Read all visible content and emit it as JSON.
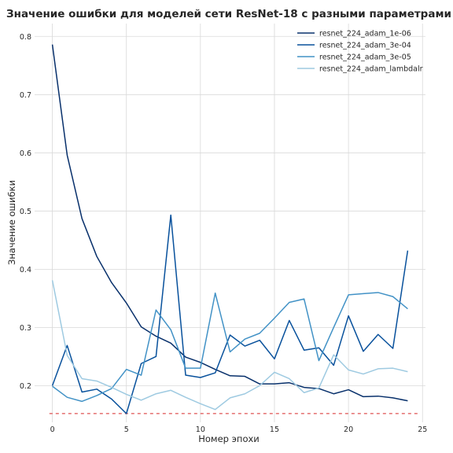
{
  "chart_data": {
    "type": "line",
    "title": "Значение ошибки для моделей сети ResNet-18 с разными параметрами",
    "xlabel": "Номер эпохи",
    "ylabel": "Значение ошибки",
    "xlim": [
      -1.2,
      25.2
    ],
    "ylim": [
      0.137,
      0.822
    ],
    "xticks": [
      0,
      5,
      10,
      15,
      20,
      25
    ],
    "yticks": [
      0.2,
      0.3,
      0.4,
      0.5,
      0.6,
      0.7,
      0.8
    ],
    "grid": true,
    "legend_position": "top-right",
    "x": [
      0,
      1,
      2,
      3,
      4,
      5,
      6,
      7,
      8,
      9,
      10,
      11,
      12,
      13,
      14,
      15,
      16,
      17,
      18,
      19,
      20,
      21,
      22,
      23,
      24
    ],
    "series": [
      {
        "name": "resnet_224_adam_1e-06",
        "color": "#08306b",
        "values": [
          0.786,
          0.596,
          0.487,
          0.422,
          0.377,
          0.342,
          0.301,
          0.285,
          0.273,
          0.249,
          0.24,
          0.228,
          0.217,
          0.216,
          0.203,
          0.203,
          0.205,
          0.197,
          0.195,
          0.186,
          0.193,
          0.181,
          0.182,
          0.179,
          0.174
        ]
      },
      {
        "name": "resnet_224_adam_3e-04",
        "color": "#08519c",
        "values": [
          0.2,
          0.269,
          0.189,
          0.194,
          0.177,
          0.152,
          0.238,
          0.25,
          0.493,
          0.218,
          0.214,
          0.222,
          0.287,
          0.268,
          0.278,
          0.246,
          0.312,
          0.261,
          0.265,
          0.235,
          0.32,
          0.259,
          0.288,
          0.264,
          0.432
        ]
      },
      {
        "name": "resnet_224_adam_3e-05",
        "color": "#4292c6",
        "values": [
          0.199,
          0.18,
          0.173,
          0.183,
          0.195,
          0.228,
          0.218,
          0.33,
          0.296,
          0.23,
          0.23,
          0.359,
          0.258,
          0.28,
          0.29,
          0.316,
          0.343,
          0.349,
          0.243,
          0.3,
          0.356,
          0.358,
          0.36,
          0.353,
          0.332
        ]
      },
      {
        "name": "resnet_224_adam_lambdalr",
        "color": "#9ecae1",
        "values": [
          0.381,
          0.252,
          0.212,
          0.208,
          0.197,
          0.185,
          0.175,
          0.186,
          0.192,
          0.18,
          0.169,
          0.159,
          0.179,
          0.186,
          0.2,
          0.223,
          0.212,
          0.188,
          0.196,
          0.253,
          0.227,
          0.22,
          0.229,
          0.23,
          0.224
        ]
      }
    ],
    "reference_line": {
      "y": 0.152,
      "color": "#d62728",
      "style": "dashed"
    }
  }
}
